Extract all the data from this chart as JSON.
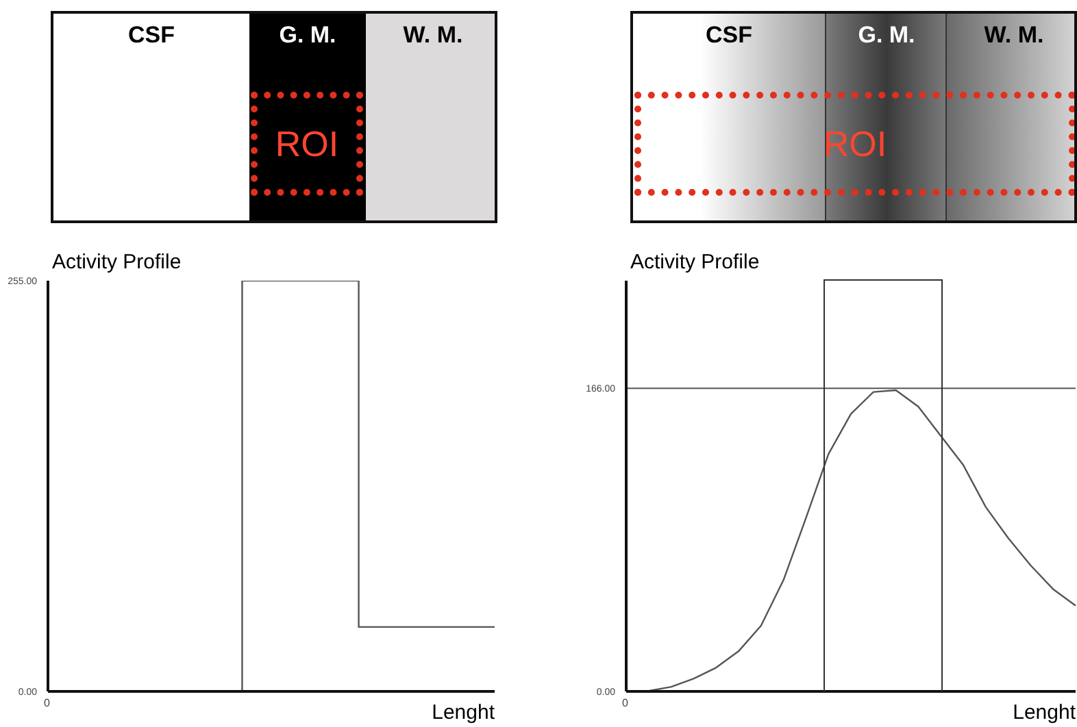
{
  "chart_data": [
    {
      "type": "step",
      "title": "Activity Profile",
      "xlabel": "Lenght",
      "annotations": [
        "CSF",
        "G. M.",
        "W. M.",
        "ROI",
        "0"
      ],
      "categories": [
        null,
        null,
        null,
        null,
        null,
        null,
        null,
        null,
        null,
        null,
        null,
        null,
        null,
        null,
        null,
        null,
        null,
        null,
        null,
        null,
        null,
        null,
        null,
        null
      ],
      "ylim": [
        0,
        255
      ],
      "yticks": [
        {
          "value": 0,
          "label": "0.00"
        },
        {
          "value": 255,
          "label": "255.00"
        }
      ],
      "marker": "none",
      "series": [
        {
          "color": "#555555",
          "values": [
            0,
            0,
            0,
            0,
            0,
            0,
            0,
            0,
            0,
            0,
            255,
            255,
            255,
            255,
            255,
            255,
            40,
            40,
            40,
            40,
            40,
            40,
            40,
            40
          ]
        }
      ]
    },
    {
      "type": "line",
      "title": "Activity Profile",
      "xlabel": "Lenght",
      "annotations": [
        "CSF",
        "G. M.",
        "W. M.",
        "ROI",
        "0"
      ],
      "categories": [
        null,
        null,
        null,
        null,
        null,
        null,
        null,
        null,
        null,
        null,
        null,
        null,
        null,
        null,
        null,
        null,
        null,
        null,
        null,
        null,
        null
      ],
      "ylim": [
        0,
        225
      ],
      "yticks": [
        {
          "value": 0,
          "label": "0.00"
        },
        {
          "value": 166,
          "label": "166.00"
        }
      ],
      "marker": "none",
      "ref_lines": [
        {
          "axis": "y",
          "value": 166,
          "color": "#555555"
        }
      ],
      "series": [
        {
          "color": "#555555",
          "values": [
            0,
            0.3,
            2.5,
            7,
            13,
            22,
            36,
            61,
            95,
            130,
            152,
            164,
            165,
            156,
            140,
            124,
            101,
            84,
            69,
            56,
            47
          ]
        }
      ]
    }
  ]
}
